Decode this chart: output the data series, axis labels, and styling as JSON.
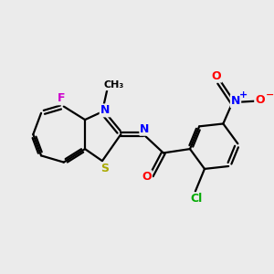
{
  "bg_color": "#ebebeb",
  "bond_color": "#000000",
  "atom_colors": {
    "F": "#cc00cc",
    "N": "#0000ff",
    "S": "#aaaa00",
    "O": "#ff0000",
    "Cl": "#00aa00",
    "C": "#000000"
  },
  "figsize": [
    3.0,
    3.0
  ],
  "dpi": 100
}
